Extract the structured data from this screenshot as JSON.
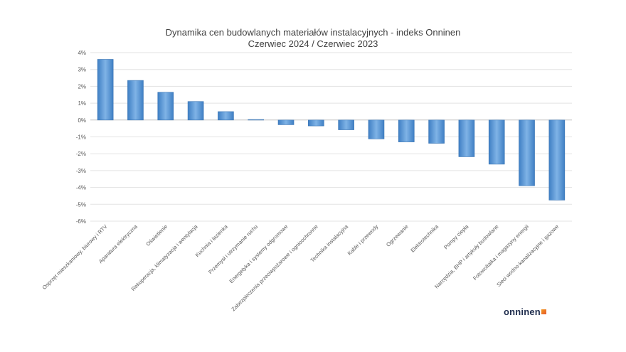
{
  "chart_data": {
    "type": "bar",
    "title": [
      "Dynamika cen budowlanych materiałów instalacyjnych - indeks Onninen",
      "Czerwiec 2024 / Czerwiec 2023"
    ],
    "categories": [
      "Osprzęt mieszkaniowy, biurowy i RTV",
      "Aparatura elektryczna",
      "Oświetlenie",
      "Rekuperacja, klimatyzacja i wentylacja",
      "Kuchnia i łazienka",
      "Przemysł i utrzymanie ruchu",
      "Energetyka i systemy odgromowe",
      "Zabezpieczenia przeciwpożarowe i ognioochronne",
      "Technika instalacyjna",
      "Kable i przewody",
      "Ogrzewanie",
      "Elektrotechnika",
      "Pompy ciepła",
      "Narzędzia, BHP i artykuły budowlane",
      "Fotowoltaika i magazyny energii",
      "Sieci wodno-kanalizacyjne i gazowe"
    ],
    "values": [
      3.6,
      2.35,
      1.65,
      1.1,
      0.5,
      0.03,
      -0.28,
      -0.35,
      -0.58,
      -1.12,
      -1.3,
      -1.38,
      -2.18,
      -2.62,
      -3.9,
      -4.75
    ],
    "ylim": [
      -6,
      4
    ],
    "yticks": [
      4,
      3,
      2,
      1,
      0,
      -1,
      -2,
      -3,
      -4,
      -5,
      -6
    ],
    "ytick_labels": [
      "4%",
      "3%",
      "2%",
      "1%",
      "0%",
      "-1%",
      "-2%",
      "-3%",
      "-4%",
      "-5%",
      "-6%"
    ],
    "grid": true,
    "bar_color": "#5b9bd5"
  },
  "logo": {
    "text": "onninen"
  }
}
